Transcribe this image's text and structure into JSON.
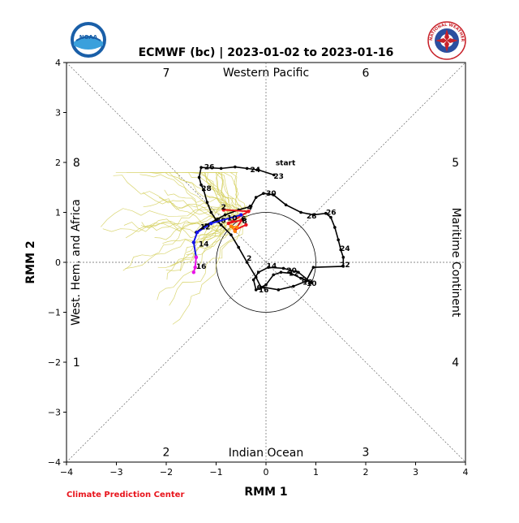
{
  "chart_data": {
    "type": "line",
    "title": "ECMWF (bc) | 2023-01-02 to 2023-01-16",
    "xlabel": "RMM 1",
    "ylabel": "RMM 2",
    "xlim": [
      -4,
      4
    ],
    "ylim": [
      -4,
      4
    ],
    "ticks": [
      -4,
      -3,
      -2,
      -1,
      0,
      1,
      2,
      3,
      4
    ],
    "unit_circle_radius": 1,
    "region_labels": {
      "top": "Western Pacific",
      "bottom": "Indian Ocean",
      "left": "West. Hem. and Africa",
      "right": "Maritime Continent"
    },
    "phase_labels": [
      {
        "label": "7",
        "x": -2.0,
        "y": 3.8
      },
      {
        "label": "6",
        "x": 2.0,
        "y": 3.8
      },
      {
        "label": "8",
        "x": -3.8,
        "y": 2.0
      },
      {
        "label": "5",
        "x": 3.8,
        "y": 2.0
      },
      {
        "label": "1",
        "x": -3.8,
        "y": -2.0
      },
      {
        "label": "4",
        "x": 3.8,
        "y": -2.0
      },
      {
        "label": "2",
        "x": -2.0,
        "y": -3.8
      },
      {
        "label": "3",
        "x": 2.0,
        "y": -3.8
      }
    ],
    "observed_series": {
      "name": "Observed",
      "color": "#000000",
      "start_label": "start",
      "points": [
        [
          0.16,
          1.75
        ],
        [
          -0.15,
          1.85
        ],
        [
          -0.38,
          1.88
        ],
        [
          -0.62,
          1.91
        ],
        [
          -0.9,
          1.88
        ],
        [
          -1.3,
          1.9
        ],
        [
          -1.34,
          1.7
        ],
        [
          -1.3,
          1.55
        ],
        [
          -1.25,
          1.45
        ],
        [
          -1.18,
          1.2
        ],
        [
          -1.1,
          1.0
        ],
        [
          -1.0,
          0.85
        ],
        [
          -0.9,
          0.75
        ],
        [
          -0.7,
          0.55
        ],
        [
          -0.55,
          0.3
        ],
        [
          -0.38,
          0.0
        ],
        [
          -0.2,
          -0.3
        ],
        [
          -0.1,
          -0.5
        ],
        [
          0.0,
          -0.45
        ],
        [
          0.15,
          -0.25
        ],
        [
          0.3,
          -0.2
        ],
        [
          0.5,
          -0.22
        ],
        [
          0.7,
          -0.32
        ],
        [
          0.9,
          -0.4
        ],
        [
          0.65,
          -0.2
        ],
        [
          0.35,
          -0.12
        ],
        [
          0.05,
          -0.1
        ],
        [
          -0.15,
          -0.2
        ],
        [
          -0.25,
          -0.35
        ],
        [
          -0.2,
          -0.55
        ],
        [
          -0.05,
          -0.5
        ],
        [
          0.25,
          -0.55
        ],
        [
          0.55,
          -0.48
        ],
        [
          0.8,
          -0.38
        ],
        [
          0.95,
          -0.1
        ],
        [
          1.55,
          -0.08
        ],
        [
          1.55,
          0.1
        ],
        [
          1.5,
          0.25
        ],
        [
          1.45,
          0.45
        ],
        [
          1.38,
          0.7
        ],
        [
          1.3,
          0.9
        ],
        [
          1.2,
          0.98
        ],
        [
          0.95,
          0.95
        ],
        [
          0.7,
          1.0
        ],
        [
          0.4,
          1.15
        ],
        [
          0.15,
          1.35
        ],
        [
          -0.05,
          1.38
        ],
        [
          -0.2,
          1.3
        ],
        [
          -0.3,
          1.12
        ],
        [
          -0.55,
          1.05
        ],
        [
          -0.82,
          0.95
        ],
        [
          -1.0,
          0.85
        ],
        [
          -1.2,
          0.75
        ],
        [
          -1.4,
          0.6
        ]
      ]
    },
    "observed_labels": [
      {
        "label": "23",
        "x": 0.12,
        "y": 1.72
      },
      {
        "label": "24",
        "x": -0.35,
        "y": 1.85
      },
      {
        "label": "26",
        "x": -1.27,
        "y": 1.91
      },
      {
        "label": "28",
        "x": -1.33,
        "y": 1.48
      },
      {
        "label": "30",
        "x": -1.04,
        "y": 0.84
      },
      {
        "label": "2",
        "x": -0.42,
        "y": 0.08
      },
      {
        "label": "30",
        "x": -0.03,
        "y": 1.38
      },
      {
        "label": "28",
        "x": 0.78,
        "y": 0.93
      },
      {
        "label": "26",
        "x": 1.17,
        "y": 1.0
      },
      {
        "label": "24",
        "x": 1.45,
        "y": 0.28
      },
      {
        "label": "22",
        "x": 1.45,
        "y": -0.05
      },
      {
        "label": "20",
        "x": 0.38,
        "y": -0.16
      },
      {
        "label": "18",
        "x": 0.7,
        "y": -0.4
      },
      {
        "label": "10",
        "x": 0.78,
        "y": -0.42
      },
      {
        "label": "12",
        "x": 0.42,
        "y": -0.22
      },
      {
        "label": "14",
        "x": -0.02,
        "y": -0.07
      },
      {
        "label": "16",
        "x": -0.18,
        "y": -0.55
      },
      {
        "label": "8",
        "x": 0.68,
        "y": -0.35
      },
      {
        "label": "6",
        "x": -0.22,
        "y": -0.5
      }
    ],
    "forecast_segments": [
      {
        "name": "red",
        "color": "#e8141c",
        "points": [
          [
            -0.85,
            1.05
          ],
          [
            -0.35,
            1.02
          ],
          [
            -0.75,
            0.78
          ],
          [
            -0.48,
            0.85
          ],
          [
            -0.62,
            0.65
          ],
          [
            -0.4,
            0.75
          ]
        ]
      },
      {
        "name": "orange",
        "color": "#ff7f00",
        "points": [
          [
            -0.62,
            0.62
          ],
          [
            -0.7,
            0.72
          ],
          [
            -0.58,
            0.7
          ]
        ]
      },
      {
        "name": "blue",
        "color": "#1414e8",
        "points": [
          [
            -0.5,
            0.95
          ],
          [
            -1.1,
            0.78
          ],
          [
            -1.38,
            0.6
          ],
          [
            -1.45,
            0.4
          ],
          [
            -1.4,
            0.1
          ]
        ]
      },
      {
        "name": "magenta",
        "color": "#e814e8",
        "points": [
          [
            -1.4,
            0.1
          ],
          [
            -1.42,
            -0.1
          ],
          [
            -1.45,
            -0.2
          ]
        ]
      }
    ],
    "forecast_labels": [
      {
        "label": "2",
        "x": -0.9,
        "y": 1.06
      },
      {
        "label": "4",
        "x": -0.38,
        "y": 1.05
      },
      {
        "label": "6",
        "x": -0.5,
        "y": 0.82
      },
      {
        "label": "8",
        "x": -0.48,
        "y": 0.78
      },
      {
        "label": "10",
        "x": -0.78,
        "y": 0.84
      },
      {
        "label": "12",
        "x": -1.32,
        "y": 0.66
      },
      {
        "label": "14",
        "x": -1.35,
        "y": 0.32
      },
      {
        "label": "16",
        "x": -1.4,
        "y": -0.13
      }
    ]
  },
  "footer": {
    "text": "Climate Prediction Center"
  },
  "logos": {
    "noaa_text": "NOAA",
    "nws_text": "NATIONAL WEATHER SERVICE"
  }
}
